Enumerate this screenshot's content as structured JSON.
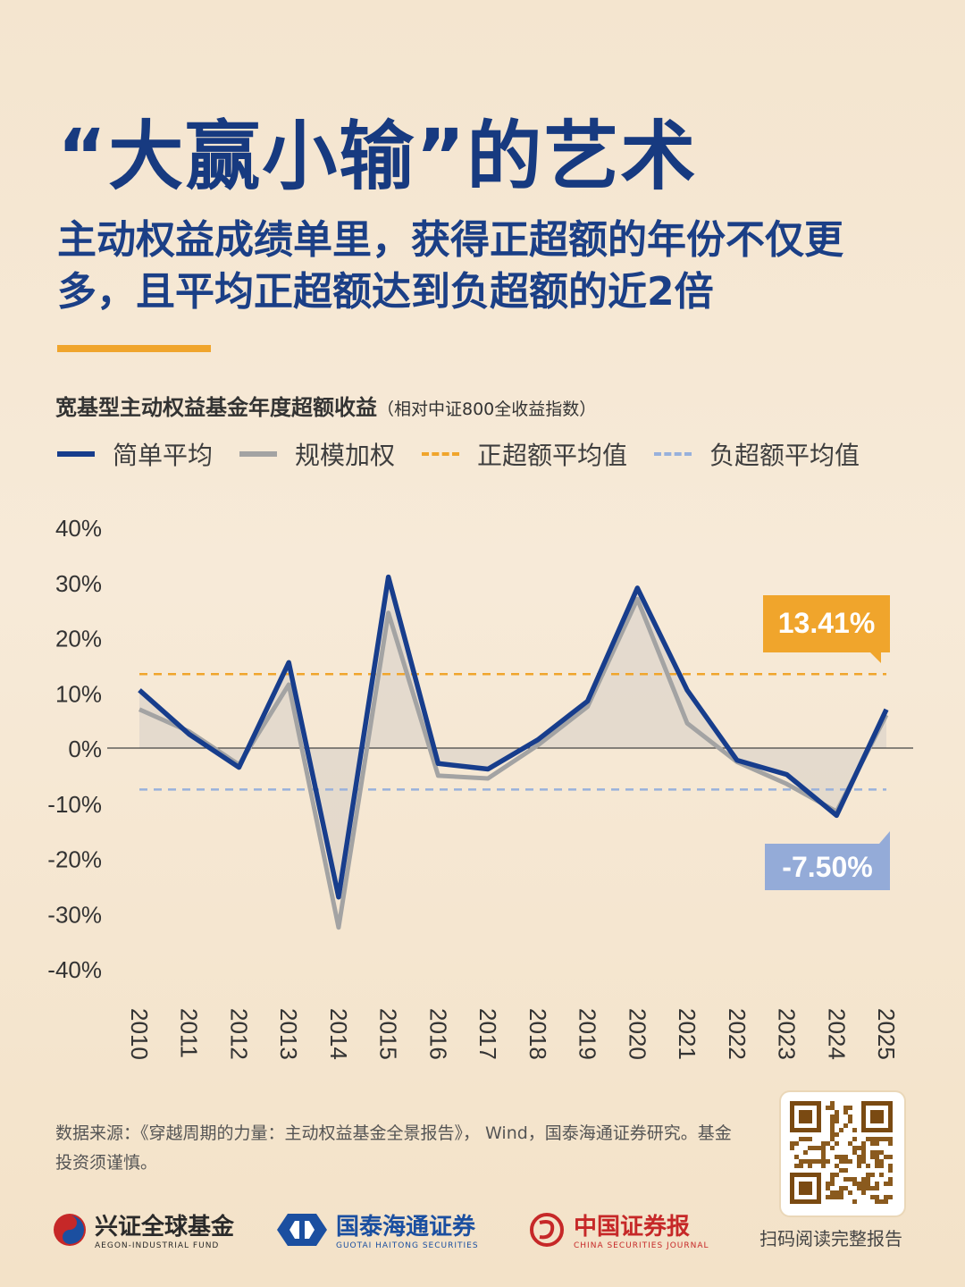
{
  "header": {
    "title": "“大赢小输”的艺术",
    "subtitle": "主动权益成绩单里，获得正超额的年份不仅更多，且平均正超额达到负超额的近2倍"
  },
  "chart": {
    "title": "宽基型主动权益基金年度超额收益",
    "title_note": "（相对中证800全收益指数）",
    "legend": [
      "简单平均",
      "规模加权",
      "正超额平均值",
      "负超额平均值"
    ],
    "positive_avg_label": "13.41%",
    "negative_avg_label": "-7.50%"
  },
  "chart_data": {
    "type": "line",
    "x": [
      "2010",
      "2011",
      "2012",
      "2013",
      "2014",
      "2015",
      "2016",
      "2017",
      "2018",
      "2019",
      "2020",
      "2021",
      "2022",
      "2023",
      "2024",
      "2025"
    ],
    "y_ticks": [
      "40%",
      "30%",
      "20%",
      "10%",
      "0%",
      "-10%",
      "-20%",
      "-30%",
      "-40%"
    ],
    "ylim": [
      -40,
      40
    ],
    "series": [
      {
        "name": "简单平均",
        "color": "#173d8c",
        "values": [
          10.5,
          2.5,
          -3.5,
          15.5,
          -27.0,
          31.0,
          -2.8,
          -3.8,
          1.5,
          8.5,
          29.0,
          10.5,
          -2.2,
          -4.8,
          -12.2,
          7.0
        ]
      },
      {
        "name": "规模加权",
        "color": "#a3a3a3",
        "values": [
          7.0,
          3.0,
          -3.0,
          11.5,
          -32.5,
          24.5,
          -5.0,
          -5.5,
          0.5,
          7.5,
          27.0,
          4.5,
          -2.5,
          -6.5,
          -11.5,
          6.0
        ]
      }
    ],
    "reference_lines": [
      {
        "name": "正超额平均值",
        "value": 13.41,
        "color": "#f0a52c"
      },
      {
        "name": "负超额平均值",
        "value": -7.5,
        "color": "#98b1dc"
      }
    ]
  },
  "footer": {
    "source": "数据来源：《穿越周期的力量：主动权益基金全景报告》， Wind，国泰海通证券研究。基金投资须谨慎。",
    "qr_caption": "扫码阅读完整报告",
    "logos": [
      {
        "cn": "兴证全球基金",
        "en": "AEGON-INDUSTRIAL FUND",
        "color": "#2a2a2a"
      },
      {
        "cn": "国泰海通证券",
        "en": "GUOTAI HAITONG SECURITIES",
        "color": "#1b4fa0"
      },
      {
        "cn": "中国证券报",
        "en": "CHINA SECURITIES JOURNAL",
        "color": "#c62828"
      }
    ]
  }
}
